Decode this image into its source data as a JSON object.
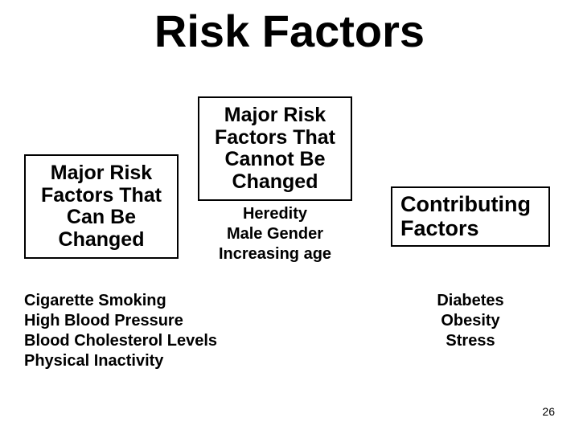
{
  "slide": {
    "title": "Risk Factors",
    "page_number": "26",
    "background_color": "#ffffff",
    "text_color": "#000000",
    "border_color": "#000000",
    "title_fontsize": 56,
    "box_fontsize": 25,
    "list_fontsize": 20
  },
  "boxes": {
    "left": {
      "lines": [
        "Major Risk",
        "Factors That",
        "Can Be",
        "Changed"
      ]
    },
    "center": {
      "lines": [
        "Major Risk",
        "Factors That",
        "Cannot Be",
        "Changed"
      ]
    },
    "right": {
      "lines": [
        "Contributing",
        "Factors"
      ]
    }
  },
  "lists": {
    "left": {
      "items": [
        "Cigarette Smoking",
        "High Blood Pressure",
        "Blood Cholesterol Levels",
        "Physical Inactivity"
      ]
    },
    "center": {
      "items": [
        "Heredity",
        "Male Gender",
        "Increasing age"
      ]
    },
    "right": {
      "items": [
        "Diabetes",
        "Obesity",
        "Stress"
      ]
    }
  }
}
